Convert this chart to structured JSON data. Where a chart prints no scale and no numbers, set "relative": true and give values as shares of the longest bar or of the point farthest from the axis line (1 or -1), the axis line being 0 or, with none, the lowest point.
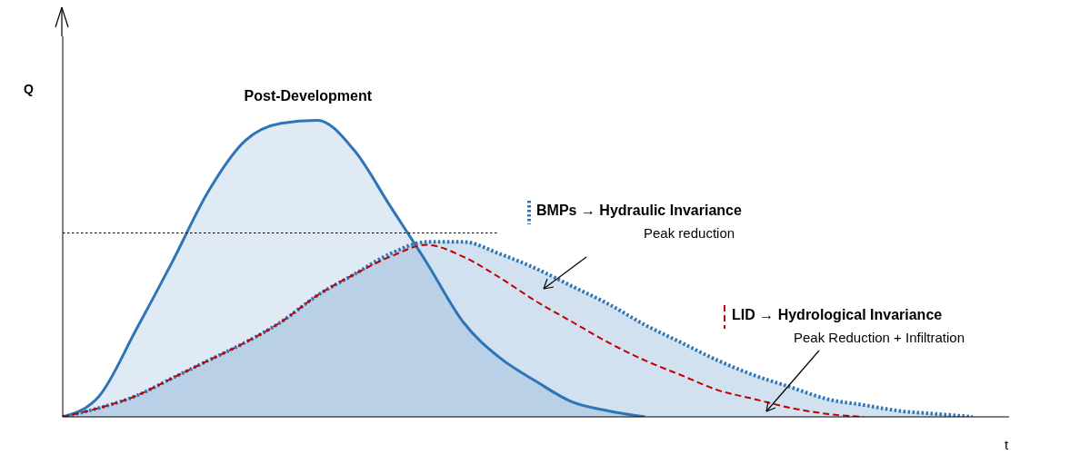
{
  "chart_data": {
    "type": "area",
    "relative": true,
    "xlabel": "t",
    "ylabel": "Q",
    "legend": "right",
    "categories": [
      null,
      null,
      null,
      null,
      null,
      null,
      null,
      null,
      null,
      null,
      null,
      null,
      null,
      null,
      null,
      null,
      null,
      null,
      null,
      null,
      null,
      null,
      null,
      null,
      null,
      null,
      null
    ],
    "series": [
      {
        "name": "Post-Development",
        "color": "#2e75b6",
        "line_style": "solid",
        "values": [
          0,
          0.07,
          0.29,
          0.52,
          0.76,
          0.93,
          0.99,
          1.0,
          0.9,
          0.71,
          0.52,
          0.32,
          0.2,
          0.12,
          0.05,
          0.02,
          0,
          null,
          null,
          null,
          null,
          null,
          null,
          null,
          null,
          null,
          null
        ]
      },
      {
        "name": "BMPs → Hydraulic Invariance",
        "color": "#2e75b6",
        "line_style": "dotted",
        "values": [
          0,
          0.03,
          0.07,
          0.13,
          0.19,
          0.25,
          0.32,
          0.41,
          0.48,
          0.55,
          0.59,
          0.59,
          0.55,
          0.5,
          0.44,
          0.38,
          0.31,
          0.25,
          0.19,
          0.14,
          0.1,
          0.06,
          0.04,
          0.02,
          0.01,
          0,
          null
        ]
      },
      {
        "name": "LID → Hydrological Invariance",
        "type": "line",
        "color": "#c00000",
        "line_style": "dashed",
        "values": [
          0,
          0.03,
          0.07,
          0.13,
          0.19,
          0.25,
          0.32,
          0.41,
          0.48,
          0.54,
          0.58,
          0.54,
          0.47,
          0.39,
          0.32,
          0.25,
          0.19,
          0.14,
          0.09,
          0.06,
          0.03,
          0.01,
          0,
          null,
          null,
          null,
          null
        ]
      }
    ],
    "ref_lines": [
      {
        "axis": "y",
        "value": 0.62,
        "line_style": "dotted",
        "color": "#000000"
      }
    ],
    "annotations": [
      "Peak reduction",
      "Peak Reduction + Infiltration"
    ]
  }
}
